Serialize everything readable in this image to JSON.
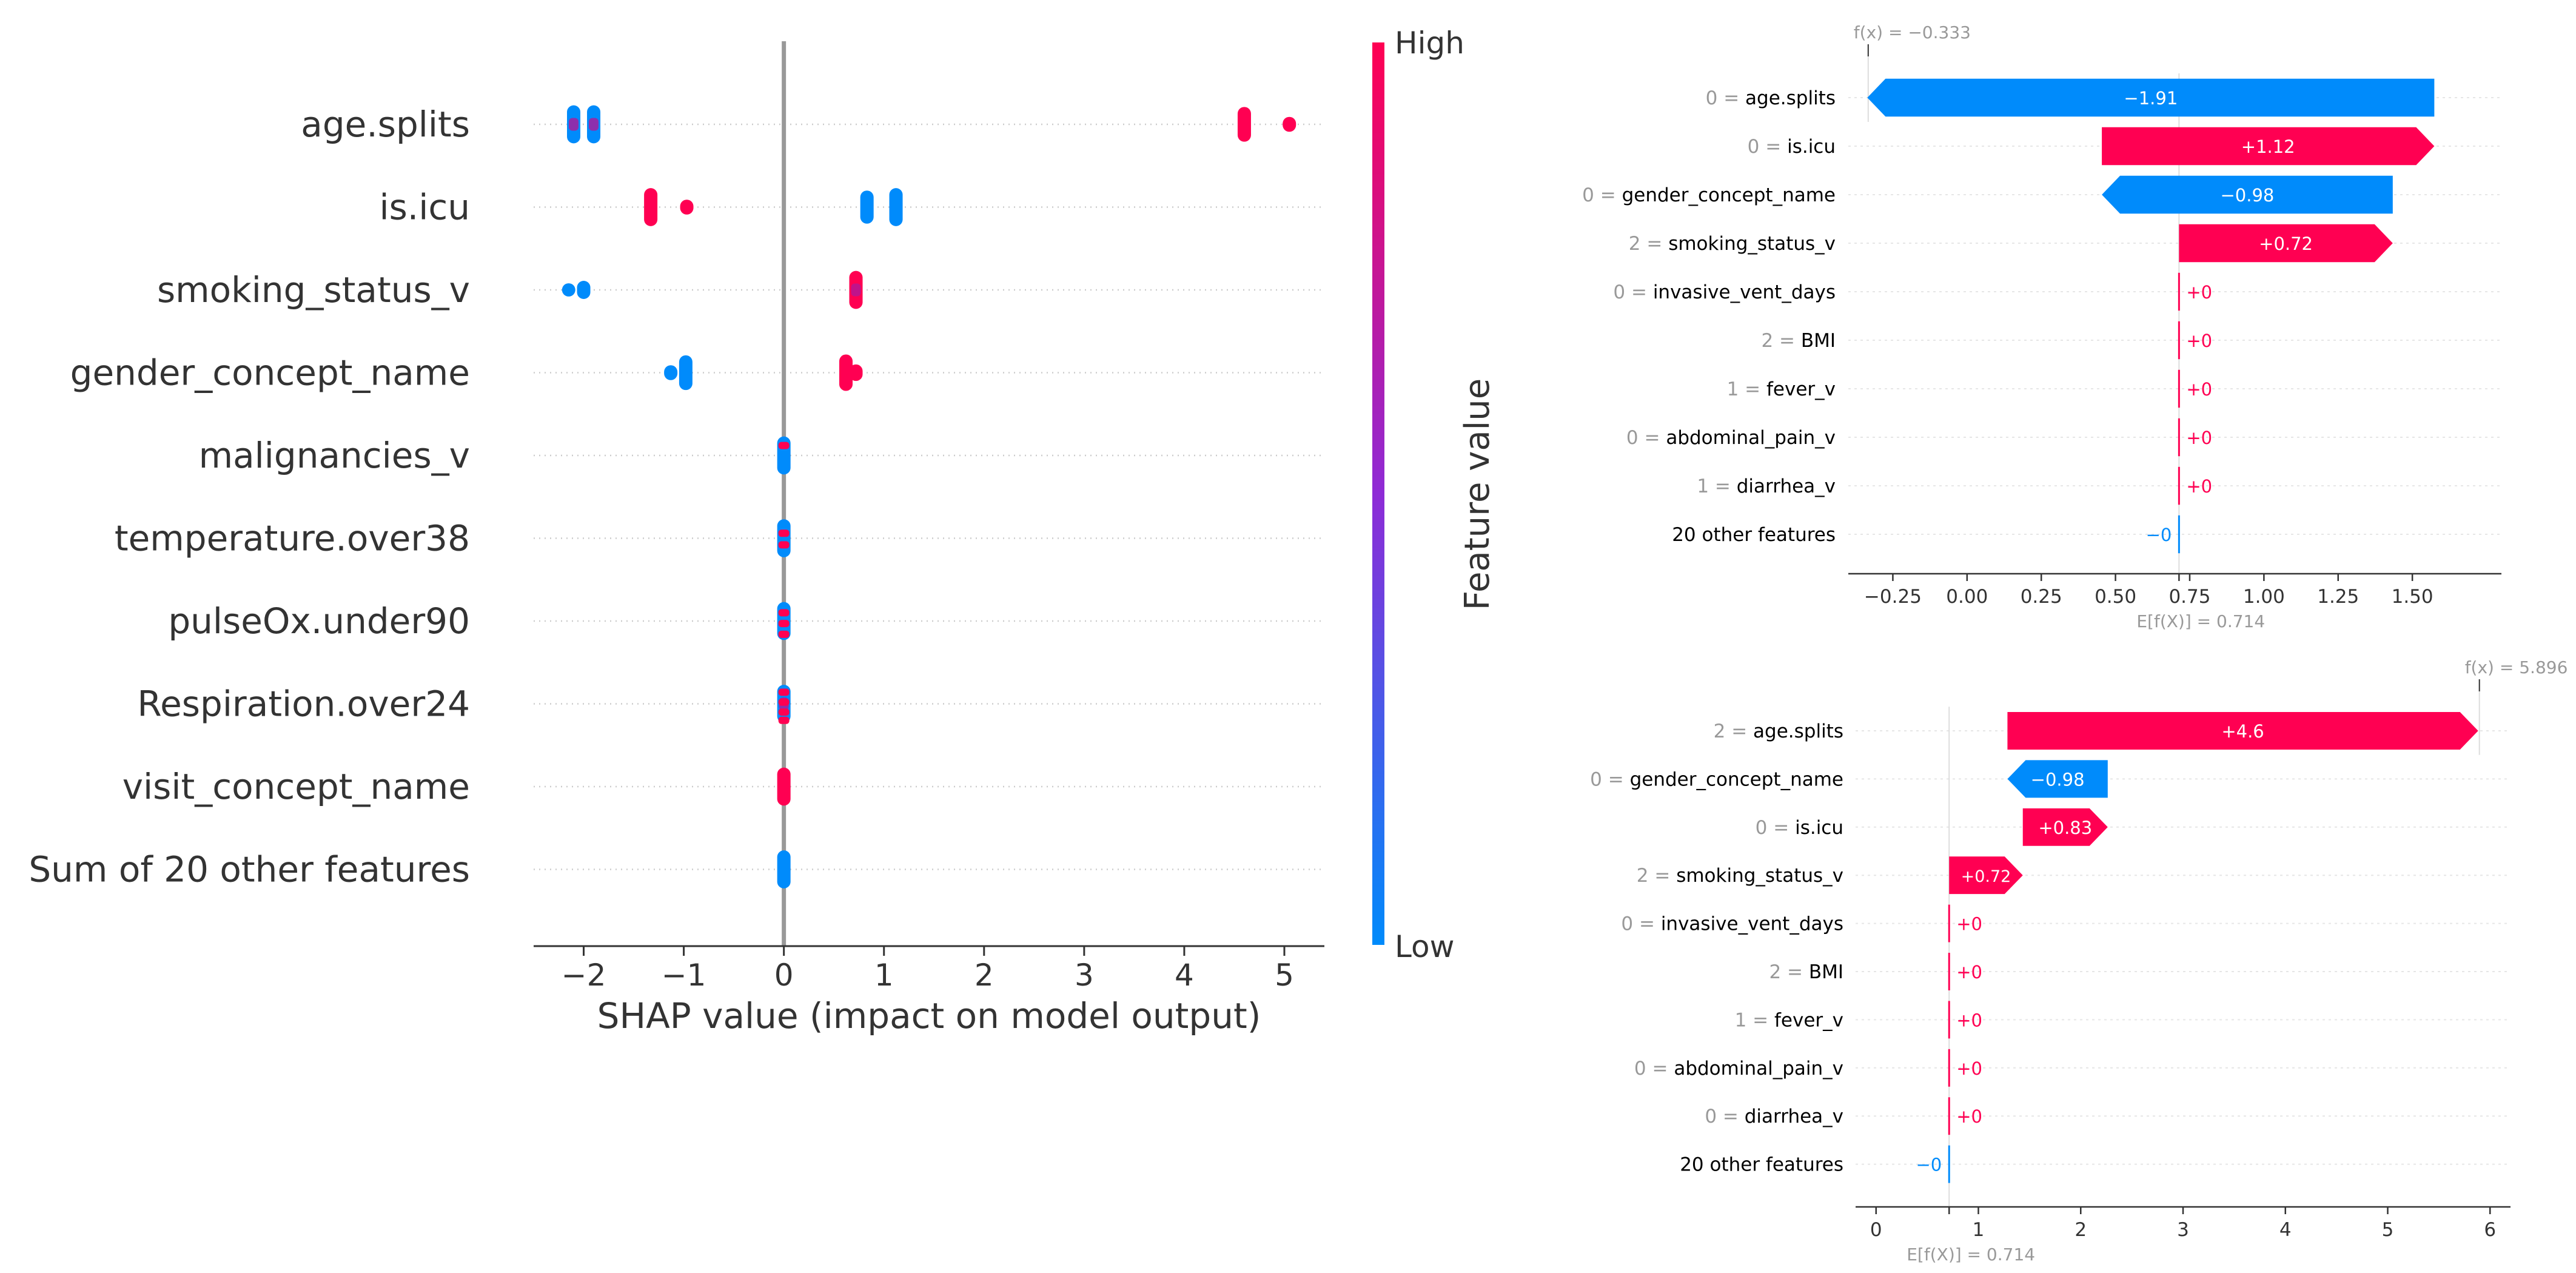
{
  "chart_data": [
    {
      "type": "beeswarm",
      "xlabel": "SHAP value (impact on model output)",
      "xlim": [
        -2.5,
        5.4
      ],
      "xticks": [
        -2,
        -1,
        0,
        1,
        2,
        3,
        4,
        5
      ],
      "xtick_labels": [
        "−2",
        "−1",
        "0",
        "1",
        "2",
        "3",
        "4",
        "5"
      ],
      "colorbar": {
        "label": "Feature value",
        "high_label": "High",
        "low_label": "Low",
        "high_color": "#ff0052",
        "low_color": "#008bfb"
      },
      "features": [
        {
          "name": "age.splits",
          "clusters": [
            {
              "x": -2.1,
              "spread": 0.46,
              "color": "low",
              "mix": true
            },
            {
              "x": -1.9,
              "spread": 0.46,
              "color": "low",
              "mix": true
            },
            {
              "x": 4.6,
              "spread": 0.42,
              "color": "high"
            },
            {
              "x": 5.05,
              "spread": 0.18,
              "color": "high"
            }
          ]
        },
        {
          "name": "is.icu",
          "clusters": [
            {
              "x": -1.33,
              "spread": 0.46,
              "color": "high"
            },
            {
              "x": -0.97,
              "spread": 0.18,
              "color": "high"
            },
            {
              "x": 0.83,
              "spread": 0.4,
              "color": "low"
            },
            {
              "x": 1.12,
              "spread": 0.46,
              "color": "low"
            }
          ]
        },
        {
          "name": "smoking_status_v",
          "clusters": [
            {
              "x": -2.15,
              "spread": 0.16,
              "color": "low"
            },
            {
              "x": -2.0,
              "spread": 0.22,
              "color": "low"
            },
            {
              "x": 0.72,
              "spread": 0.46,
              "color": "high",
              "mix": true
            }
          ]
        },
        {
          "name": "gender_concept_name",
          "clusters": [
            {
              "x": -1.13,
              "spread": 0.18,
              "color": "low"
            },
            {
              "x": -0.98,
              "spread": 0.42,
              "color": "low"
            },
            {
              "x": 0.62,
              "spread": 0.44,
              "color": "high"
            },
            {
              "x": 0.72,
              "spread": 0.2,
              "color": "high"
            }
          ]
        },
        {
          "name": "malignancies_v",
          "clusters": [
            {
              "x": 0.0,
              "spread": 0.46,
              "color": "low",
              "accents": [
                -0.12
              ]
            }
          ]
        },
        {
          "name": "temperature.over38",
          "clusters": [
            {
              "x": 0.0,
              "spread": 0.46,
              "color": "low",
              "accents": [
                -0.06,
                0.08
              ]
            }
          ]
        },
        {
          "name": "pulseOx.under90",
          "clusters": [
            {
              "x": 0.0,
              "spread": 0.46,
              "color": "low",
              "accents": [
                -0.1,
                0.03,
                0.16
              ]
            }
          ]
        },
        {
          "name": "Respiration.over24",
          "clusters": [
            {
              "x": 0.0,
              "spread": 0.46,
              "color": "low",
              "accents": [
                -0.14,
                -0.02,
                0.1,
                0.2
              ],
              "mix": true
            }
          ]
        },
        {
          "name": "visit_concept_name",
          "clusters": [
            {
              "x": 0.0,
              "spread": 0.46,
              "color": "high"
            }
          ]
        },
        {
          "name": "Sum of 20 other features",
          "clusters": [
            {
              "x": 0.0,
              "spread": 0.46,
              "color": "low"
            }
          ]
        }
      ]
    },
    {
      "type": "waterfall",
      "fx_label": "f(x) = −0.333",
      "fx": -0.333,
      "base_label": "E[f(X)] = 0.714",
      "base": 0.714,
      "xlim": [
        -0.4,
        1.8
      ],
      "xticks": [
        -0.25,
        0.0,
        0.25,
        0.5,
        0.75,
        1.0,
        1.25,
        1.5
      ],
      "xtick_labels": [
        "−0.25",
        "0.00",
        "0.25",
        "0.50",
        "0.75",
        "1.00",
        "1.25",
        "1.50"
      ],
      "rows": [
        {
          "value_label": "0 =",
          "feature": "age.splits",
          "contribution": -1.91,
          "text": "−1.91"
        },
        {
          "value_label": "0 =",
          "feature": "is.icu",
          "contribution": 1.12,
          "text": "+1.12"
        },
        {
          "value_label": "0 =",
          "feature": "gender_concept_name",
          "contribution": -0.98,
          "text": "−0.98"
        },
        {
          "value_label": "2 =",
          "feature": "smoking_status_v",
          "contribution": 0.72,
          "text": "+0.72"
        },
        {
          "value_label": "0 =",
          "feature": "invasive_vent_days",
          "contribution": 0,
          "text": "+0"
        },
        {
          "value_label": "2 =",
          "feature": "BMI",
          "contribution": 0,
          "text": "+0"
        },
        {
          "value_label": "1 =",
          "feature": "fever_v",
          "contribution": 0,
          "text": "+0"
        },
        {
          "value_label": "0 =",
          "feature": "abdominal_pain_v",
          "contribution": 0,
          "text": "+0"
        },
        {
          "value_label": "1 =",
          "feature": "diarrhea_v",
          "contribution": 0,
          "text": "+0"
        },
        {
          "value_label": "",
          "feature": "20 other features",
          "contribution": -0.0,
          "text": "−0"
        }
      ]
    },
    {
      "type": "waterfall",
      "fx_label": "f(x) = 5.896",
      "fx": 5.896,
      "base_label": "E[f(X)] = 0.714",
      "base": 0.714,
      "xlim": [
        -0.2,
        6.2
      ],
      "xticks": [
        0,
        1,
        2,
        3,
        4,
        5,
        6
      ],
      "xtick_labels": [
        "0",
        "1",
        "2",
        "3",
        "4",
        "5",
        "6"
      ],
      "rows": [
        {
          "value_label": "2 =",
          "feature": "age.splits",
          "contribution": 4.6,
          "text": "+4.6"
        },
        {
          "value_label": "0 =",
          "feature": "gender_concept_name",
          "contribution": -0.98,
          "text": "−0.98"
        },
        {
          "value_label": "0 =",
          "feature": "is.icu",
          "contribution": 0.83,
          "text": "+0.83"
        },
        {
          "value_label": "2 =",
          "feature": "smoking_status_v",
          "contribution": 0.72,
          "text": "+0.72"
        },
        {
          "value_label": "0 =",
          "feature": "invasive_vent_days",
          "contribution": 0,
          "text": "+0"
        },
        {
          "value_label": "2 =",
          "feature": "BMI",
          "contribution": 0,
          "text": "+0"
        },
        {
          "value_label": "1 =",
          "feature": "fever_v",
          "contribution": 0,
          "text": "+0"
        },
        {
          "value_label": "0 =",
          "feature": "abdominal_pain_v",
          "contribution": 0,
          "text": "+0"
        },
        {
          "value_label": "0 =",
          "feature": "diarrhea_v",
          "contribution": 0,
          "text": "+0"
        },
        {
          "value_label": "",
          "feature": "20 other features",
          "contribution": -0.0,
          "text": "−0"
        }
      ]
    }
  ]
}
